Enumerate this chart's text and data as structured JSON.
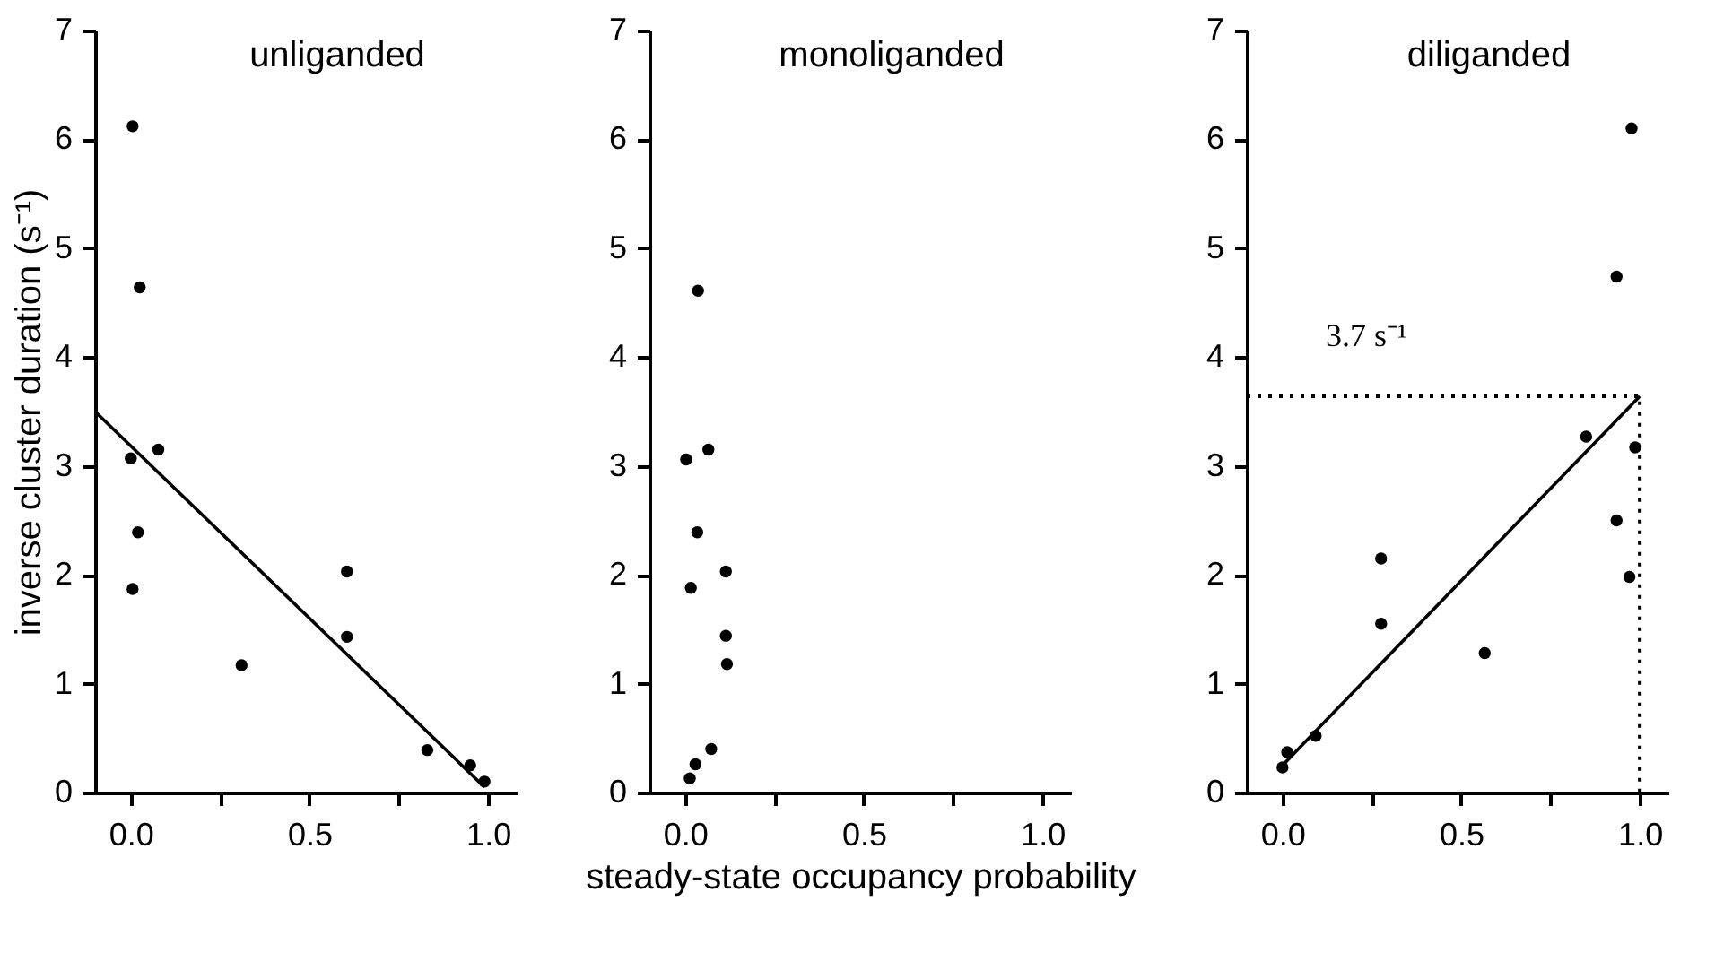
{
  "chart_data": [
    {
      "type": "scatter",
      "title": "unliganded",
      "ylabel": "inverse cluster duration (s⁻¹)",
      "xlim": [
        -0.1,
        1.08
      ],
      "ylim": [
        0,
        7
      ],
      "xticks": [
        {
          "value": 0,
          "label": "0.0"
        },
        {
          "value": 0.25,
          "label": null
        },
        {
          "value": 0.5,
          "label": "0.5"
        },
        {
          "value": 0.75,
          "label": null
        },
        {
          "value": 1,
          "label": "1.0"
        }
      ],
      "yticks": [
        0,
        1,
        2,
        3,
        4,
        5,
        6,
        7
      ],
      "grid": false,
      "marker": "circle",
      "series": [
        {
          "color": "#000000",
          "x": [
            0.005,
            0.025,
            0.0,
            0.077,
            0.02,
            0.005,
            0.31,
            0.605,
            0.605,
            0.83,
            0.95,
            0.99
          ],
          "values": [
            6.12,
            4.64,
            3.07,
            3.15,
            2.39,
            1.87,
            1.17,
            2.03,
            1.43,
            0.39,
            0.25,
            0.1
          ]
        },
        {
          "type": "line",
          "marker": "none",
          "color": "#000000",
          "line_style": "solid",
          "x": [
            -0.1,
            0.99
          ],
          "values": [
            3.5,
            0.05
          ]
        }
      ]
    },
    {
      "type": "scatter",
      "title": "monoliganded",
      "xlabel": "steady-state occupancy probability",
      "xlim": [
        -0.1,
        1.08
      ],
      "ylim": [
        0,
        7
      ],
      "xticks": [
        {
          "value": 0,
          "label": "0.0"
        },
        {
          "value": 0.25,
          "label": null
        },
        {
          "value": 0.5,
          "label": "0.5"
        },
        {
          "value": 0.75,
          "label": null
        },
        {
          "value": 1,
          "label": "1.0"
        }
      ],
      "yticks": [
        0,
        1,
        2,
        3,
        4,
        5,
        6,
        7
      ],
      "grid": false,
      "marker": "circle",
      "series": [
        {
          "color": "#000000",
          "x": [
            0.036,
            0.003,
            0.065,
            0.034,
            0.016,
            0.114,
            0.114,
            0.117,
            0.073,
            0.029,
            0.013
          ],
          "values": [
            4.61,
            3.06,
            3.15,
            2.39,
            1.88,
            2.03,
            1.44,
            1.18,
            0.4,
            0.26,
            0.13
          ]
        }
      ]
    },
    {
      "type": "scatter",
      "title": "diliganded",
      "annotations": [
        "3.7 s⁻¹"
      ],
      "xlim": [
        -0.1,
        1.08
      ],
      "ylim": [
        0,
        7
      ],
      "xticks": [
        {
          "value": 0,
          "label": "0.0"
        },
        {
          "value": 0.25,
          "label": null
        },
        {
          "value": 0.5,
          "label": "0.5"
        },
        {
          "value": 0.75,
          "label": null
        },
        {
          "value": 1,
          "label": "1.0"
        }
      ],
      "yticks": [
        0,
        1,
        2,
        3,
        4,
        5,
        6,
        7
      ],
      "grid": false,
      "marker": "circle",
      "series": [
        {
          "color": "#000000",
          "x": [
            0.977,
            0.935,
            0.85,
            0.987,
            0.935,
            0.971,
            0.276,
            0.276,
            0.566,
            0.093,
            0.013,
            0.0
          ],
          "values": [
            6.1,
            4.74,
            3.27,
            3.17,
            2.5,
            1.98,
            2.15,
            1.55,
            1.28,
            0.52,
            0.37,
            0.23
          ]
        },
        {
          "type": "line",
          "marker": "none",
          "color": "#000000",
          "line_style": "solid",
          "x": [
            0.0,
            1.0
          ],
          "values": [
            0.25,
            3.64
          ]
        },
        {
          "type": "line",
          "marker": "none",
          "color": "#000000",
          "line_style": "dotted",
          "x": [
            -0.1,
            1.0,
            1.0
          ],
          "values": [
            3.64,
            3.64,
            0.0
          ]
        }
      ]
    }
  ]
}
